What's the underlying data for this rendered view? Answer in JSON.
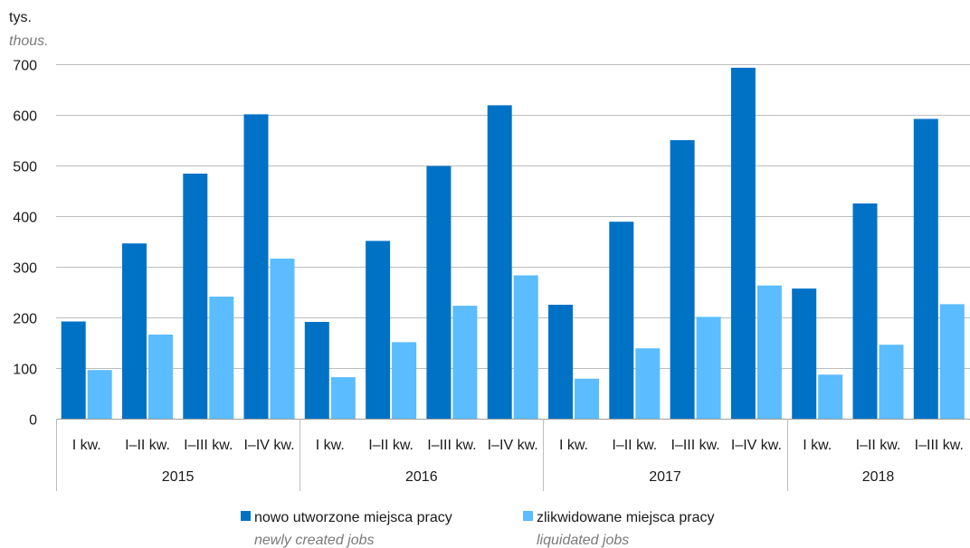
{
  "chart_data": {
    "type": "bar",
    "unit_label": "tys.",
    "unit_label_en": "thous.",
    "ylim": [
      0,
      700
    ],
    "yticks": [
      0,
      100,
      200,
      300,
      400,
      500,
      600,
      700
    ],
    "grid": true,
    "groups": [
      {
        "year": "2015",
        "categories": [
          "I kw.",
          "I–II kw.",
          "I–III kw.",
          "I–IV kw."
        ]
      },
      {
        "year": "2016",
        "categories": [
          "I kw.",
          "I–II kw.",
          "I–III kw.",
          "I–IV kw."
        ]
      },
      {
        "year": "2017",
        "categories": [
          "I kw.",
          "I–II kw.",
          "I–III kw.",
          "I–IV kw."
        ]
      },
      {
        "year": "2018",
        "categories": [
          "I kw.",
          "I–II kw.",
          "I–III kw."
        ]
      }
    ],
    "series": [
      {
        "name": "nowo utworzone miejsca pracy",
        "name_en": "newly created jobs",
        "color": "#0072c6",
        "values": [
          192,
          346,
          484,
          601,
          191,
          351,
          499,
          619,
          225,
          389,
          550,
          693,
          257,
          425,
          592
        ]
      },
      {
        "name": "zlikwidowane miejsca pracy",
        "name_en": "liquidated jobs",
        "color": "#5bbcff",
        "values": [
          96,
          166,
          241,
          316,
          82,
          151,
          223,
          283,
          79,
          139,
          201,
          263,
          87,
          146,
          226
        ]
      }
    ],
    "legend_position": "bottom"
  }
}
